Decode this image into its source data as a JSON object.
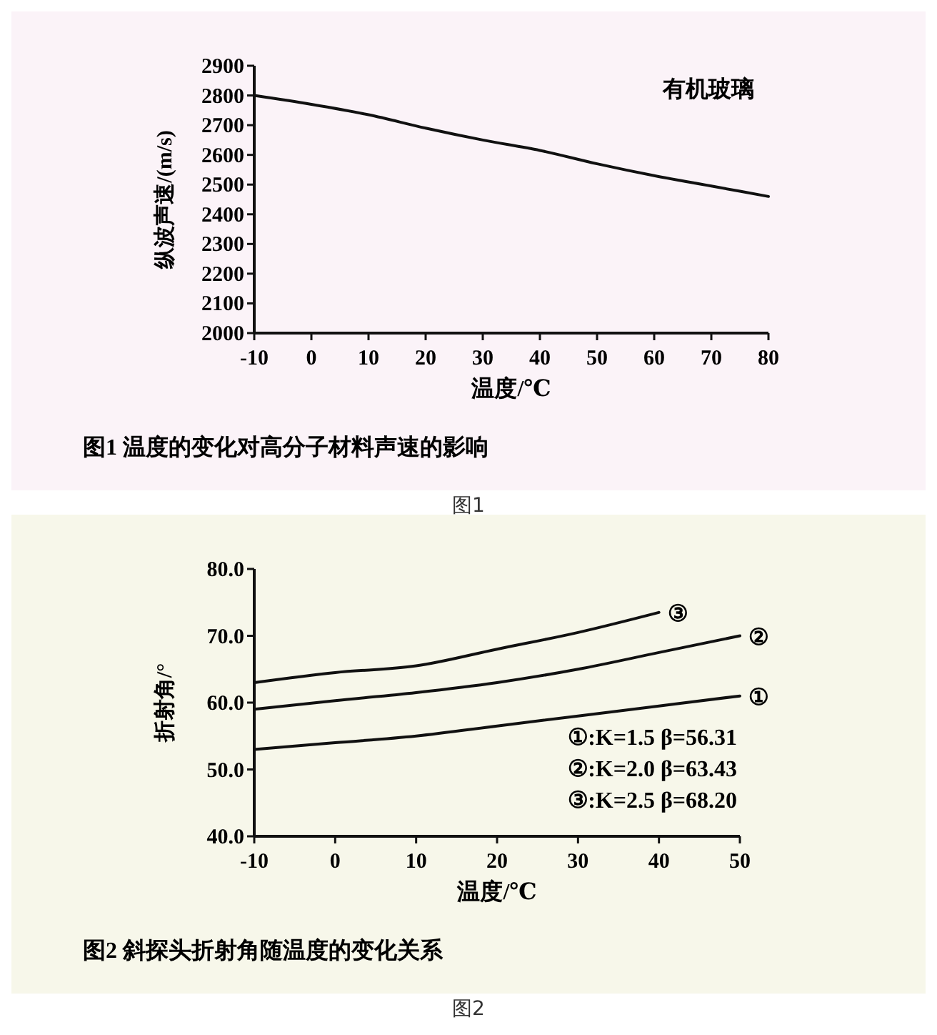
{
  "chart_data": [
    {
      "type": "line",
      "title": "图1 温度的变化对高分子材料声速的影响",
      "xlabel": "温度/℃",
      "ylabel": "纵波声速/(m/s)",
      "x": [
        -10,
        0,
        10,
        20,
        30,
        40,
        50,
        60,
        70,
        80
      ],
      "series": [
        {
          "name": "有机玻璃",
          "color": "#111111",
          "values": [
            2800,
            2770,
            2735,
            2690,
            2650,
            2615,
            2570,
            2530,
            2495,
            2460
          ]
        }
      ],
      "xlim": [
        -10,
        80
      ],
      "xticks": [
        -10,
        0,
        10,
        20,
        30,
        40,
        50,
        60,
        70,
        80
      ],
      "ylim": [
        2000,
        2900
      ],
      "yticks": [
        2000,
        2100,
        2200,
        2300,
        2400,
        2500,
        2600,
        2700,
        2800,
        2900
      ],
      "annotations": [
        "图1"
      ]
    },
    {
      "type": "line",
      "title": "图2 斜探头折射角随温度的变化关系",
      "xlabel": "温度/℃",
      "ylabel": "折射角/°",
      "x": [
        -10,
        0,
        10,
        20,
        30,
        40,
        50
      ],
      "series": [
        {
          "name": "①",
          "color": "#111111",
          "values": [
            53,
            54,
            55,
            56.5,
            58,
            59.5,
            61
          ]
        },
        {
          "name": "②",
          "color": "#111111",
          "values": [
            59,
            60.3,
            61.5,
            63,
            65,
            67.5,
            70
          ]
        },
        {
          "name": "③",
          "color": "#111111",
          "values": [
            63,
            64.5,
            65.5,
            68,
            70.5,
            73.5,
            null
          ]
        }
      ],
      "xlim": [
        -10,
        50
      ],
      "xticks": [
        -10,
        0,
        10,
        20,
        30,
        40,
        50
      ],
      "ylim": [
        40,
        80
      ],
      "yticks": [
        {
          "value": 40,
          "label": "40.0"
        },
        {
          "value": 50,
          "label": "50.0"
        },
        {
          "value": 60,
          "label": "60.0"
        },
        {
          "value": 70,
          "label": "70.0"
        },
        {
          "value": 80,
          "label": "80.0"
        }
      ],
      "annotations": [
        "①:K=1.5 β=56.31",
        "②:K=2.0 β=63.43",
        "③:K=2.5 β=68.20",
        "图2"
      ]
    }
  ]
}
